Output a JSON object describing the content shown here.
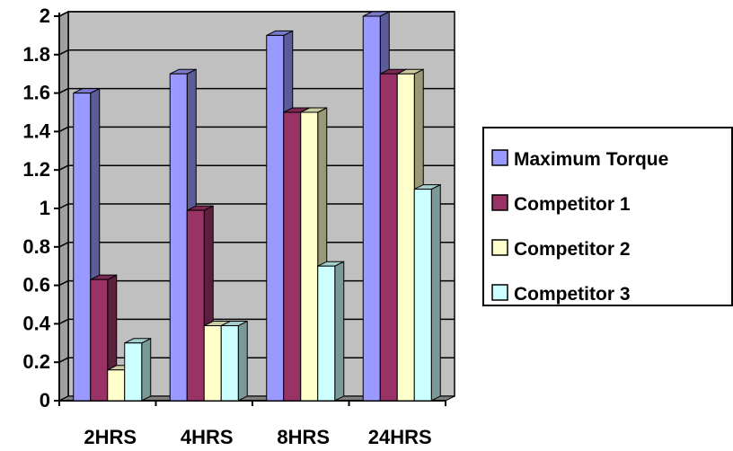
{
  "chart_data": {
    "type": "bar",
    "categories": [
      "2HRS",
      "4HRS",
      "8HRS",
      "24HRS"
    ],
    "series": [
      {
        "name": "Maximum Torque",
        "values": [
          1.6,
          1.7,
          1.9,
          2.0
        ],
        "color": "#9999ff"
      },
      {
        "name": "Competitor 1",
        "values": [
          0.63,
          0.99,
          1.5,
          1.7
        ],
        "color": "#993366"
      },
      {
        "name": "Competitor 2",
        "values": [
          0.16,
          0.39,
          1.5,
          1.7
        ],
        "color": "#ffffcc"
      },
      {
        "name": "Competitor 3",
        "values": [
          0.3,
          0.39,
          0.7,
          1.1
        ],
        "color": "#ccffff"
      }
    ],
    "ylim": [
      0,
      2
    ],
    "yticks": [
      "0",
      "0.2",
      "0.4",
      "0.6",
      "0.8",
      "1",
      "1.2",
      "1.4",
      "1.6",
      "1.8",
      "2"
    ],
    "grid": true,
    "legend_position": "right",
    "plot_background": "#c0c0c0",
    "title": "",
    "xlabel": "",
    "ylabel": ""
  }
}
